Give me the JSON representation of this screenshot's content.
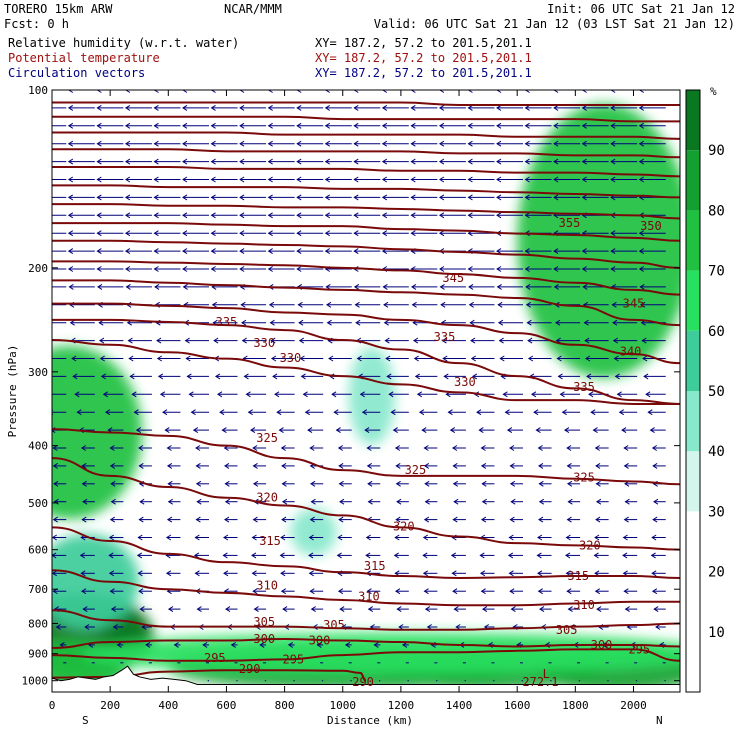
{
  "header": {
    "line1_left": "TORERO  15km ARW",
    "line1_mid": "NCAR/MMM",
    "line1_right": "Init: 06 UTC Sat 21 Jan 12",
    "line2_left": "Fcst:    0 h",
    "line2_right": "Valid: 06 UTC Sat 21 Jan 12 (03 LST Sat 21 Jan 12)",
    "fields": [
      {
        "label": "Relative humidity (w.r.t. water)",
        "xy": "XY= 187.2, 57.2 to 201.5,201.1",
        "color": "#000000"
      },
      {
        "label": "Potential temperature",
        "xy": "XY= 187.2, 57.2 to 201.5,201.1",
        "color": "#a01010"
      },
      {
        "label": "Circulation vectors",
        "xy": "XY= 187.2, 57.2 to 201.5,201.1",
        "color": "#000080"
      }
    ]
  },
  "colors": {
    "contour": "#7a0a0a",
    "vector": "#00007a",
    "terrain": "#ffffff",
    "rh_levels": [
      "#ffffff",
      "#d4f5ec",
      "#88e8cc",
      "#3dcc9a",
      "#28e060",
      "#20c040",
      "#14a030",
      "#0a7820"
    ]
  },
  "chart_data": {
    "type": "heatmap",
    "title": "",
    "xlabel": "Distance (km)",
    "ylabel": "Pressure (hPa)",
    "xlim": [
      0,
      2160
    ],
    "ylim": [
      1000,
      100
    ],
    "y_scale": "log",
    "x_ticks": [
      0,
      200,
      400,
      600,
      800,
      1000,
      1200,
      1400,
      1600,
      1800,
      2000
    ],
    "y_ticks": [
      100,
      200,
      300,
      400,
      500,
      600,
      700,
      800,
      900,
      1000
    ],
    "x_end_labels": {
      "left": "S",
      "right": "N"
    },
    "colorbar": {
      "unit": "%",
      "ticks": [
        10,
        20,
        30,
        40,
        50,
        60,
        70,
        80,
        90
      ],
      "levels": [
        0,
        30,
        40,
        50,
        60,
        70,
        80,
        90,
        100
      ]
    },
    "rh_field": [
      {
        "x": 100,
        "p": 840,
        "rh": 92,
        "rx": 250,
        "rp": 130
      },
      {
        "x": 240,
        "p": 830,
        "rh": 95,
        "rx": 70,
        "rp": 60
      },
      {
        "x": 60,
        "p": 950,
        "rh": 75,
        "rx": 200,
        "rp": 80
      },
      {
        "x": 120,
        "p": 680,
        "rh": 58,
        "rx": 180,
        "rp": 120
      },
      {
        "x": 60,
        "p": 380,
        "rh": 72,
        "rx": 250,
        "rp": 140
      },
      {
        "x": 1000,
        "p": 950,
        "rh": 85,
        "rx": 600,
        "rp": 60
      },
      {
        "x": 1500,
        "p": 950,
        "rh": 85,
        "rx": 400,
        "rp": 60
      },
      {
        "x": 1950,
        "p": 950,
        "rh": 88,
        "rx": 300,
        "rp": 70
      },
      {
        "x": 1200,
        "p": 900,
        "rh": 60,
        "rx": 1100,
        "rp": 55
      },
      {
        "x": 1900,
        "p": 180,
        "rh": 72,
        "rx": 300,
        "rp": 120
      },
      {
        "x": 1100,
        "p": 330,
        "rh": 40,
        "rx": 80,
        "rp": 60
      },
      {
        "x": 900,
        "p": 560,
        "rh": 42,
        "rx": 80,
        "rp": 40
      }
    ],
    "series": [
      {
        "name": "290",
        "x": [
          0,
          200,
          400,
          600,
          800,
          1000,
          1060,
          1080
        ],
        "y": [
          988,
          985,
          965,
          960,
          960,
          962,
          970,
          1000
        ]
      },
      {
        "name": "295",
        "x": [
          0,
          200,
          400,
          600,
          800,
          1000,
          1200,
          1400,
          1600,
          1800,
          2000,
          2160
        ],
        "y": [
          905,
          915,
          925,
          925,
          920,
          905,
          895,
          895,
          890,
          885,
          885,
          925
        ]
      },
      {
        "name": "300",
        "x": [
          0,
          200,
          400,
          600,
          800,
          1000,
          1200,
          1400,
          1600,
          1800,
          2000,
          2160
        ],
        "y": [
          880,
          860,
          855,
          855,
          850,
          855,
          860,
          870,
          875,
          870,
          870,
          875
        ]
      },
      {
        "name": "305",
        "x": [
          0,
          200,
          400,
          600,
          800,
          1000,
          1200,
          1400,
          1600,
          1800,
          2000,
          2160
        ],
        "y": [
          760,
          790,
          810,
          810,
          810,
          815,
          820,
          820,
          815,
          810,
          805,
          800
        ]
      },
      {
        "name": "310",
        "x": [
          0,
          200,
          400,
          600,
          800,
          1000,
          1200,
          1400,
          1600,
          1800,
          2000,
          2160
        ],
        "y": [
          650,
          680,
          700,
          710,
          720,
          730,
          740,
          745,
          745,
          740,
          735,
          735
        ]
      },
      {
        "name": "315",
        "x": [
          0,
          200,
          400,
          600,
          800,
          1000,
          1200,
          1400,
          1600,
          1800,
          2000,
          2160
        ],
        "y": [
          550,
          580,
          610,
          630,
          640,
          655,
          665,
          670,
          668,
          665,
          665,
          670
        ]
      },
      {
        "name": "320",
        "x": [
          0,
          200,
          400,
          600,
          800,
          1000,
          1200,
          1400,
          1600,
          1800,
          2000,
          2160
        ],
        "y": [
          420,
          450,
          470,
          490,
          505,
          525,
          550,
          570,
          585,
          590,
          595,
          600
        ]
      },
      {
        "name": "325",
        "x": [
          0,
          200,
          400,
          600,
          800,
          1000,
          1200,
          1400,
          1600,
          1800,
          2000,
          2160
        ],
        "y": [
          375,
          380,
          385,
          400,
          420,
          440,
          450,
          450,
          450,
          455,
          460,
          465
        ]
      },
      {
        "name": "330",
        "x": [
          0,
          200,
          400,
          600,
          800,
          1000,
          1200,
          1400,
          1600,
          1800,
          2000,
          2160
        ],
        "y": [
          265,
          270,
          278,
          285,
          295,
          305,
          315,
          325,
          335,
          335,
          340,
          340
        ]
      },
      {
        "name": "335",
        "x": [
          0,
          200,
          400,
          600,
          800,
          1000,
          1200,
          1400,
          1600,
          1800,
          2000,
          2160
        ],
        "y": [
          245,
          245,
          247,
          250,
          255,
          265,
          275,
          290,
          305,
          320,
          335,
          340
        ]
      },
      {
        "name": "340",
        "x": [
          0,
          200,
          400,
          600,
          800,
          1000,
          1200,
          1400,
          1600,
          1800,
          2000,
          2160
        ],
        "y": [
          230,
          230,
          232,
          234,
          238,
          240,
          245,
          250,
          258,
          270,
          280,
          290
        ]
      },
      {
        "name": "345",
        "x": [
          0,
          200,
          400,
          600,
          800,
          1000,
          1200,
          1400,
          1600,
          1800,
          2000,
          2160
        ],
        "y": [
          210,
          210,
          212,
          214,
          216,
          218,
          220,
          222,
          225,
          232,
          245,
          250
        ]
      },
      {
        "name": "350",
        "x": [
          0,
          200,
          400,
          600,
          800,
          1000,
          1200,
          1400,
          1600,
          1800,
          2000,
          2160
        ],
        "y": [
          195,
          195,
          196,
          197,
          198,
          200,
          202,
          205,
          208,
          212,
          218,
          222
        ]
      },
      {
        "name": "355",
        "x": [
          0,
          200,
          400,
          600,
          800,
          1000,
          1200,
          1400,
          1600,
          1800,
          2000,
          2160
        ],
        "y": [
          180,
          180,
          181,
          182,
          183,
          184,
          186,
          188,
          190,
          193,
          196,
          200
        ]
      },
      {
        "name": "",
        "x": [
          0,
          200,
          400,
          600,
          800,
          1000,
          1200,
          1400,
          1600,
          1800,
          2000,
          2160
        ],
        "y": [
          168,
          168,
          168,
          169,
          170,
          170,
          172,
          173,
          175,
          176,
          178,
          180
        ]
      },
      {
        "name": "",
        "x": [
          0,
          200,
          400,
          600,
          800,
          1000,
          1200,
          1400,
          1600,
          1800,
          2000,
          2160
        ],
        "y": [
          156,
          156,
          157,
          157,
          158,
          158,
          159,
          160,
          161,
          162,
          163,
          165
        ]
      },
      {
        "name": "",
        "x": [
          0,
          200,
          400,
          600,
          800,
          1000,
          1200,
          1400,
          1600,
          1800,
          2000,
          2160
        ],
        "y": [
          145,
          145,
          146,
          146,
          146,
          147,
          147,
          148,
          149,
          150,
          151,
          152
        ]
      },
      {
        "name": "",
        "x": [
          0,
          200,
          400,
          600,
          800,
          1000,
          1200,
          1400,
          1600,
          1800,
          2000,
          2160
        ],
        "y": [
          135,
          135,
          135,
          136,
          136,
          136,
          137,
          137,
          138,
          138,
          139,
          140
        ]
      },
      {
        "name": "",
        "x": [
          0,
          200,
          400,
          600,
          800,
          1000,
          1200,
          1400,
          1600,
          1800,
          2000,
          2160
        ],
        "y": [
          126,
          126,
          126,
          127,
          127,
          127,
          127,
          128,
          128,
          129,
          129,
          130
        ]
      },
      {
        "name": "",
        "x": [
          0,
          200,
          400,
          600,
          800,
          1000,
          1200,
          1400,
          1600,
          1800,
          2000,
          2160
        ],
        "y": [
          118,
          118,
          118,
          118,
          119,
          119,
          119,
          119,
          120,
          120,
          120,
          121
        ]
      },
      {
        "name": "",
        "x": [
          0,
          200,
          400,
          600,
          800,
          1000,
          1200,
          1400,
          1600,
          1800,
          2000,
          2160
        ],
        "y": [
          111,
          111,
          111,
          111,
          111,
          112,
          112,
          112,
          112,
          112,
          113,
          113
        ]
      },
      {
        "name": "",
        "x": [
          0,
          200,
          400,
          600,
          800,
          1000,
          1200,
          1400,
          1600,
          1800,
          2000,
          2160
        ],
        "y": [
          105,
          105,
          105,
          105,
          105,
          105,
          105,
          106,
          106,
          106,
          106,
          106
        ]
      }
    ],
    "contour_labels": [
      {
        "text": "290",
        "x": 1070,
        "p": 1005
      },
      {
        "text": "290",
        "x": 680,
        "p": 955
      },
      {
        "text": "295",
        "x": 560,
        "p": 915
      },
      {
        "text": "295",
        "x": 830,
        "p": 920
      },
      {
        "text": "295",
        "x": 2020,
        "p": 885
      },
      {
        "text": "300",
        "x": 730,
        "p": 850
      },
      {
        "text": "300",
        "x": 920,
        "p": 855
      },
      {
        "text": "300",
        "x": 1890,
        "p": 870
      },
      {
        "text": "305",
        "x": 730,
        "p": 795
      },
      {
        "text": "305",
        "x": 970,
        "p": 805
      },
      {
        "text": "305",
        "x": 1770,
        "p": 820
      },
      {
        "text": "310",
        "x": 740,
        "p": 690
      },
      {
        "text": "310",
        "x": 1090,
        "p": 720
      },
      {
        "text": "310",
        "x": 1830,
        "p": 745
      },
      {
        "text": "315",
        "x": 750,
        "p": 580
      },
      {
        "text": "315",
        "x": 1110,
        "p": 640
      },
      {
        "text": "315",
        "x": 1810,
        "p": 665
      },
      {
        "text": "320",
        "x": 740,
        "p": 490
      },
      {
        "text": "320",
        "x": 1210,
        "p": 548
      },
      {
        "text": "320",
        "x": 1850,
        "p": 590
      },
      {
        "text": "325",
        "x": 740,
        "p": 388
      },
      {
        "text": "325",
        "x": 1250,
        "p": 440
      },
      {
        "text": "325",
        "x": 1830,
        "p": 453
      },
      {
        "text": "330",
        "x": 820,
        "p": 284
      },
      {
        "text": "330",
        "x": 1420,
        "p": 312
      },
      {
        "text": "330",
        "x": 730,
        "p": 268
      },
      {
        "text": "335",
        "x": 600,
        "p": 247
      },
      {
        "text": "335",
        "x": 1350,
        "p": 262
      },
      {
        "text": "335",
        "x": 1830,
        "p": 318
      },
      {
        "text": "340",
        "x": 1990,
        "p": 277
      },
      {
        "text": "345",
        "x": 1380,
        "p": 208
      },
      {
        "text": "345",
        "x": 2000,
        "p": 230
      },
      {
        "text": "350",
        "x": 2060,
        "p": 170
      },
      {
        "text": "355",
        "x": 1780,
        "p": 168
      }
    ],
    "annotations": [
      {
        "text": "L",
        "x": 1700,
        "p": 975
      },
      {
        "text": "272.1",
        "x": 1680,
        "p": 1005
      }
    ],
    "vectors": {
      "x_count": 22,
      "p_count": 34,
      "u_profile": [
        {
          "p": 100,
          "u": -1.0
        },
        {
          "p": 200,
          "u": -1.0
        },
        {
          "p": 300,
          "u": -0.85
        },
        {
          "p": 400,
          "u": -0.5
        },
        {
          "p": 500,
          "u": -0.45
        },
        {
          "p": 600,
          "u": -0.55
        },
        {
          "p": 700,
          "u": -0.5
        },
        {
          "p": 800,
          "u": -0.4
        },
        {
          "p": 900,
          "u": -0.15
        },
        {
          "p": 1000,
          "u": -0.05
        }
      ]
    },
    "terrain": {
      "x": [
        0,
        30,
        60,
        90,
        120,
        150,
        180,
        210,
        240,
        260,
        280,
        300,
        340,
        380,
        420,
        460,
        500,
        560,
        2160
      ],
      "p": [
        990,
        1000,
        995,
        985,
        990,
        995,
        985,
        980,
        960,
        945,
        975,
        985,
        995,
        990,
        995,
        1000,
        1015,
        1015,
        1015
      ]
    }
  }
}
